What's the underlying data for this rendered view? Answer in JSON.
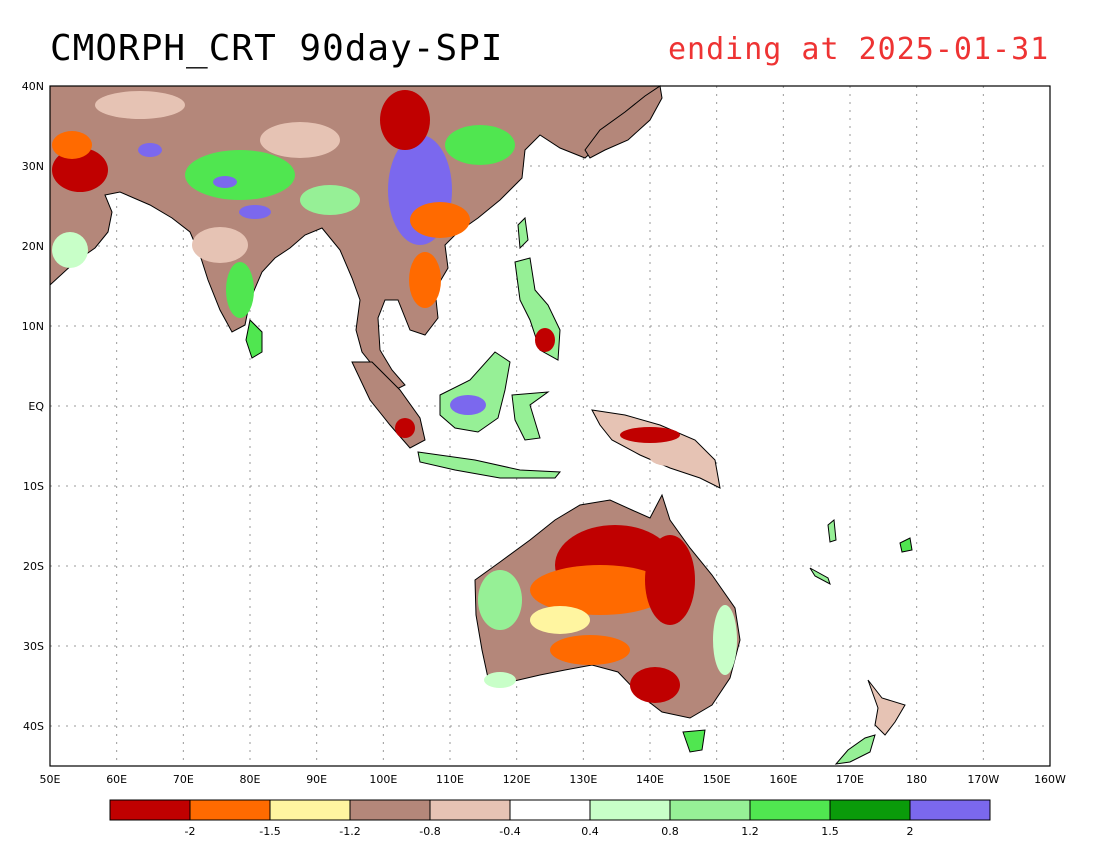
{
  "title": "CMORPH_CRT 90day-SPI",
  "subtitle": "ending at 2025-01-31",
  "colors": {
    "background": "#ffffff",
    "subtitle": "#ee3333",
    "coast": "#000000"
  },
  "map": {
    "lon_range": [
      50,
      200
    ],
    "lat_range": [
      -45,
      40
    ],
    "lat_ticks": [
      "40N",
      "30N",
      "20N",
      "10N",
      "EQ",
      "10S",
      "20S",
      "30S",
      "40S"
    ],
    "lon_ticks": [
      "50E",
      "60E",
      "70E",
      "80E",
      "90E",
      "100E",
      "110E",
      "120E",
      "130E",
      "140E",
      "150E",
      "160E",
      "170E",
      "180",
      "170W",
      "160W"
    ]
  },
  "legend": {
    "colors": [
      "#c00000",
      "#ff6a00",
      "#fff5a0",
      "#b4877a",
      "#e6c3b4",
      "#ffffff",
      "#c8ffc8",
      "#96f096",
      "#50e650",
      "#0a9b0a",
      "#7b68ee"
    ],
    "labels": [
      "-2",
      "-1.5",
      "-1.2",
      "-0.8",
      "-0.4",
      "0.4",
      "0.8",
      "1.2",
      "1.5",
      "2"
    ]
  }
}
